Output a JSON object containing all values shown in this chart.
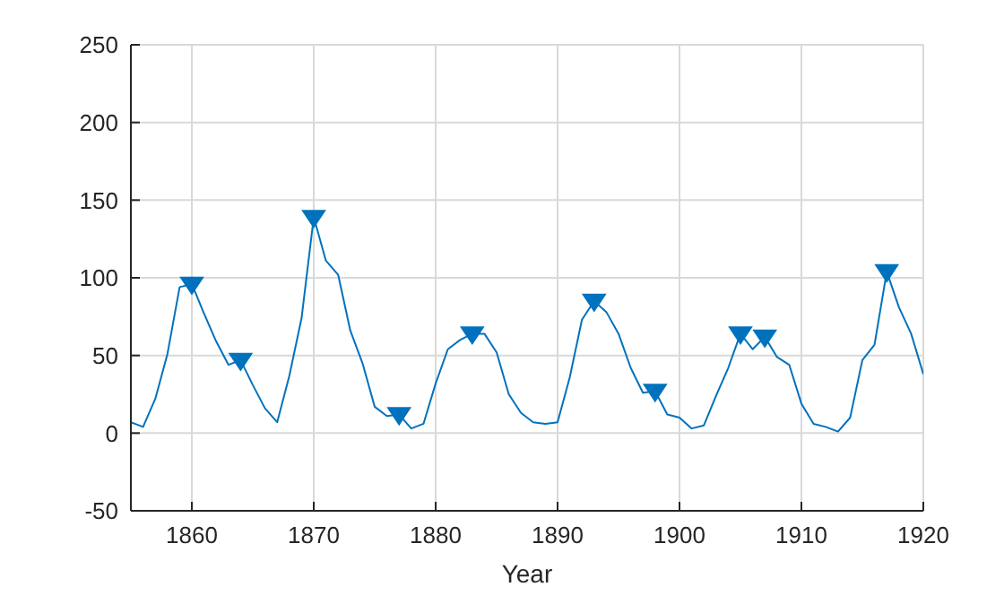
{
  "chart_data": {
    "type": "line",
    "xlabel": "Year",
    "x": [
      1855,
      1856,
      1857,
      1858,
      1859,
      1860,
      1861,
      1862,
      1863,
      1864,
      1865,
      1866,
      1867,
      1868,
      1869,
      1870,
      1871,
      1872,
      1873,
      1874,
      1875,
      1876,
      1877,
      1878,
      1879,
      1880,
      1881,
      1882,
      1883,
      1884,
      1885,
      1886,
      1887,
      1888,
      1889,
      1890,
      1891,
      1892,
      1893,
      1894,
      1895,
      1896,
      1897,
      1898,
      1899,
      1900,
      1901,
      1902,
      1903,
      1904,
      1905,
      1906,
      1907,
      1908,
      1909,
      1910,
      1911,
      1912,
      1913,
      1914,
      1915,
      1916,
      1917,
      1918,
      1919,
      1920
    ],
    "series": [
      {
        "color": "#0072bd",
        "marker": "none",
        "values": [
          7,
          4,
          22,
          51,
          94,
          96,
          77,
          59,
          44,
          47,
          31,
          16,
          7,
          37,
          74,
          139,
          111,
          102,
          66,
          45,
          17,
          11,
          12,
          3,
          6,
          32,
          54,
          60,
          64,
          64,
          52,
          25,
          13,
          7,
          6,
          7,
          36,
          73,
          85,
          78,
          64,
          42,
          26,
          27,
          12,
          10,
          3,
          5,
          24,
          42,
          64,
          54,
          62,
          49,
          44,
          19,
          6,
          4,
          1,
          10,
          47,
          57,
          104,
          81,
          64,
          38
        ]
      },
      {
        "type": "scatter",
        "color": "#0072bd",
        "marker": "triangle",
        "x": [
          1860,
          1864,
          1870,
          1877,
          1883,
          1893,
          1898,
          1905,
          1907,
          1917
        ],
        "values": [
          96,
          47,
          139,
          12,
          64,
          85,
          27,
          64,
          62,
          104
        ]
      }
    ],
    "xlim": [
      1855,
      1920
    ],
    "xticks": [
      1860,
      1870,
      1880,
      1890,
      1900,
      1910,
      1920
    ],
    "ylim": [
      -50,
      250
    ],
    "yticks": [
      -50,
      0,
      50,
      100,
      150,
      200,
      250
    ],
    "grid": true
  }
}
